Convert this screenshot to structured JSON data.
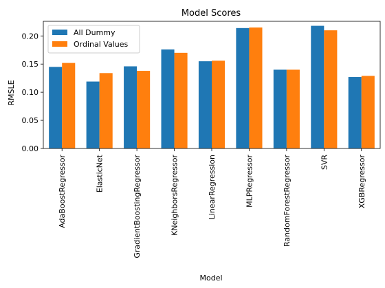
{
  "chart_data": {
    "type": "bar",
    "title": "Model Scores",
    "xlabel": "Model",
    "ylabel": "RMSLE",
    "ylim": [
      0,
      0.226
    ],
    "yticks": [
      "0.00",
      "0.05",
      "0.10",
      "0.15",
      "0.20"
    ],
    "ytick_values": [
      0,
      0.05,
      0.1,
      0.15,
      0.2
    ],
    "categories": [
      "AdaBoostRegressor",
      "ElasticNet",
      "GradientBoostingRegressor",
      "KNeighborsRegressor",
      "LinearRegression",
      "MLPRegressor",
      "RandomForestRegressor",
      "SVR",
      "XGBRegressor"
    ],
    "series": [
      {
        "name": "All Dummy",
        "color": "#1f77b4",
        "values": [
          0.145,
          0.119,
          0.146,
          0.176,
          0.155,
          0.214,
          0.14,
          0.218,
          0.127
        ]
      },
      {
        "name": "Ordinal Values",
        "color": "#ff7f0e",
        "values": [
          0.152,
          0.134,
          0.138,
          0.17,
          0.156,
          0.215,
          0.14,
          0.21,
          0.129
        ]
      }
    ],
    "legend": "top-left",
    "grid": false
  }
}
